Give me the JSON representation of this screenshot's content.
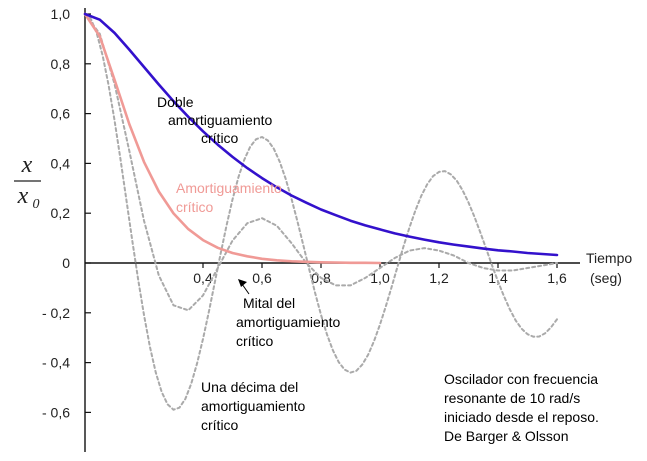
{
  "chart_data": {
    "type": "line",
    "title": "",
    "xlabel": "Tiempo",
    "xlabel_unit": "(seg)",
    "ylabel_num": "x",
    "ylabel_den": "x",
    "ylabel_den_sub": "0",
    "xlim": [
      0,
      1.7
    ],
    "ylim": [
      -0.72,
      1.0
    ],
    "grid": false,
    "x_ticks": [
      {
        "value": 0.4,
        "label": "0,4"
      },
      {
        "value": 0.6,
        "label": "0,6"
      },
      {
        "value": 0.8,
        "label": "0,8"
      },
      {
        "value": 1.0,
        "label": "1,0"
      },
      {
        "value": 1.2,
        "label": "1,2"
      },
      {
        "value": 1.4,
        "label": "1,4"
      },
      {
        "value": 1.6,
        "label": "1,6"
      }
    ],
    "y_ticks": [
      {
        "value": 1.0,
        "label": "1,0"
      },
      {
        "value": 0.8,
        "label": "0,8"
      },
      {
        "value": 0.6,
        "label": "0,6"
      },
      {
        "value": 0.4,
        "label": "0,4"
      },
      {
        "value": 0.2,
        "label": "0,2"
      },
      {
        "value": 0.0,
        "label": "0"
      },
      {
        "value": -0.2,
        "label": "- 0,2"
      },
      {
        "value": -0.4,
        "label": "- 0,4"
      },
      {
        "value": -0.6,
        "label": "- 0,6"
      }
    ],
    "series": [
      {
        "color": "#3311cc",
        "style": "solid",
        "x": [
          0.0,
          0.05,
          0.1,
          0.15,
          0.2,
          0.25,
          0.3,
          0.35,
          0.4,
          0.45,
          0.5,
          0.55,
          0.6,
          0.65,
          0.7,
          0.75,
          0.8,
          0.85,
          0.9,
          0.95,
          1.0,
          1.05,
          1.1,
          1.15,
          1.2,
          1.25,
          1.3,
          1.35,
          1.4,
          1.45,
          1.5,
          1.55,
          1.6
        ],
        "y": [
          1.0,
          0.977,
          0.924,
          0.857,
          0.787,
          0.717,
          0.65,
          0.587,
          0.529,
          0.475,
          0.426,
          0.381,
          0.341,
          0.304,
          0.271,
          0.242,
          0.215,
          0.192,
          0.17,
          0.151,
          0.135,
          0.119,
          0.106,
          0.094,
          0.083,
          0.074,
          0.066,
          0.058,
          0.051,
          0.046,
          0.04,
          0.036,
          0.032
        ]
      },
      {
        "color": "#f09a96",
        "style": "solid",
        "x": [
          0.0,
          0.05,
          0.1,
          0.15,
          0.2,
          0.25,
          0.3,
          0.35,
          0.4,
          0.45,
          0.5,
          0.55,
          0.6,
          0.65,
          0.7,
          0.75,
          0.8,
          0.85,
          0.9,
          0.95,
          1.0
        ],
        "y": [
          1.0,
          0.91,
          0.736,
          0.558,
          0.406,
          0.287,
          0.199,
          0.136,
          0.092,
          0.061,
          0.04,
          0.027,
          0.017,
          0.011,
          0.007,
          0.005,
          0.003,
          0.002,
          0.001,
          0.001,
          0.0
        ]
      },
      {
        "color": "#aaaaaa",
        "style": "dashed",
        "x": [
          0.0,
          0.05,
          0.1,
          0.15,
          0.2,
          0.25,
          0.3,
          0.35,
          0.4,
          0.45,
          0.5,
          0.55,
          0.6,
          0.65,
          0.7,
          0.75,
          0.8,
          0.85,
          0.9,
          0.95,
          1.0,
          1.05,
          1.1,
          1.15,
          1.2,
          1.25,
          1.3,
          1.35,
          1.4,
          1.45,
          1.5,
          1.55,
          1.6
        ],
        "y": [
          1.0,
          0.92,
          0.72,
          0.45,
          0.17,
          -0.05,
          -0.17,
          -0.19,
          -0.13,
          -0.02,
          0.09,
          0.16,
          0.18,
          0.15,
          0.08,
          0.0,
          -0.06,
          -0.09,
          -0.09,
          -0.06,
          -0.02,
          0.02,
          0.05,
          0.06,
          0.05,
          0.03,
          0.0,
          -0.02,
          -0.03,
          -0.03,
          -0.02,
          -0.01,
          0.0
        ]
      },
      {
        "color": "#aaaaaa",
        "style": "dashed",
        "x": [
          0.0,
          0.02,
          0.04,
          0.06,
          0.08,
          0.1,
          0.12,
          0.14,
          0.16,
          0.18,
          0.2,
          0.22,
          0.24,
          0.26,
          0.28,
          0.3,
          0.32,
          0.34,
          0.36,
          0.38,
          0.4,
          0.42,
          0.44,
          0.46,
          0.48,
          0.5,
          0.52,
          0.54,
          0.56,
          0.58,
          0.6,
          0.62,
          0.64,
          0.66,
          0.68,
          0.7,
          0.72,
          0.74,
          0.76,
          0.78,
          0.8,
          0.82,
          0.84,
          0.86,
          0.88,
          0.9,
          0.92,
          0.94,
          0.96,
          0.98,
          1.0,
          1.02,
          1.04,
          1.06,
          1.08,
          1.1,
          1.12,
          1.14,
          1.16,
          1.18,
          1.2,
          1.22,
          1.24,
          1.26,
          1.28,
          1.3,
          1.32,
          1.34,
          1.36,
          1.38,
          1.4,
          1.42,
          1.44,
          1.46,
          1.48,
          1.5,
          1.52,
          1.54,
          1.56,
          1.58,
          1.6
        ],
        "y": [
          1.0,
          0.98,
          0.922,
          0.832,
          0.714,
          0.574,
          0.419,
          0.256,
          0.092,
          -0.065,
          -0.209,
          -0.336,
          -0.44,
          -0.518,
          -0.568,
          -0.589,
          -0.581,
          -0.546,
          -0.485,
          -0.403,
          -0.305,
          -0.195,
          -0.078,
          0.039,
          0.152,
          0.255,
          0.344,
          0.415,
          0.467,
          0.497,
          0.506,
          0.492,
          0.459,
          0.407,
          0.339,
          0.258,
          0.168,
          0.072,
          -0.025,
          -0.12,
          -0.208,
          -0.286,
          -0.35,
          -0.398,
          -0.428,
          -0.44,
          -0.433,
          -0.408,
          -0.368,
          -0.313,
          -0.247,
          -0.173,
          -0.094,
          -0.012,
          0.068,
          0.143,
          0.211,
          0.27,
          0.316,
          0.349,
          0.366,
          0.369,
          0.356,
          0.331,
          0.292,
          0.243,
          0.186,
          0.123,
          0.057,
          -0.01,
          -0.074,
          -0.133,
          -0.186,
          -0.231,
          -0.264,
          -0.286,
          -0.296,
          -0.295,
          -0.282,
          -0.258,
          -0.226
        ]
      }
    ],
    "annotations": [
      {
        "lines": [
          "Doble",
          "amortiguamiento",
          "crítico"
        ],
        "color": "#000000"
      },
      {
        "lines": [
          "Amortiguamiento",
          "crítico"
        ],
        "color": "#f09a96"
      },
      {
        "lines": [
          "Mital del",
          "amortiguamiento",
          "crítico"
        ],
        "color": "#000000"
      },
      {
        "lines": [
          "Una décima del",
          "amortiguamiento",
          "crítico"
        ],
        "color": "#000000"
      },
      {
        "lines": [
          "Oscilador con frecuencia",
          "resonante de 10 rad/s",
          "iniciado desde el reposo.",
          "De   Barger & Olsson"
        ],
        "color": "#000000"
      }
    ]
  }
}
